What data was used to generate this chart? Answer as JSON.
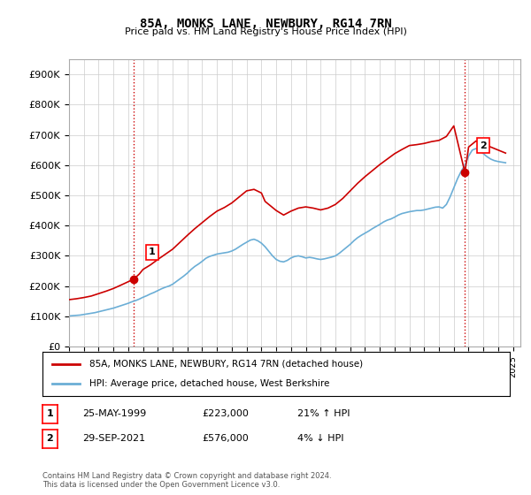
{
  "title": "85A, MONKS LANE, NEWBURY, RG14 7RN",
  "subtitle": "Price paid vs. HM Land Registry's House Price Index (HPI)",
  "ylabel_format": "£{0}K",
  "yticks": [
    0,
    100000,
    200000,
    300000,
    400000,
    500000,
    600000,
    700000,
    800000,
    900000
  ],
  "ytick_labels": [
    "£0",
    "£100K",
    "£200K",
    "£300K",
    "£400K",
    "£500K",
    "£600K",
    "£700K",
    "£800K",
    "£900K"
  ],
  "ylim": [
    0,
    950000
  ],
  "xlim_start": 1995.0,
  "xlim_end": 2025.5,
  "hpi_color": "#6baed6",
  "price_color": "#cc0000",
  "vline_color": "#cc0000",
  "vline_style": "dotted",
  "point1_x": 1999.38,
  "point1_y": 223000,
  "point2_x": 2021.75,
  "point2_y": 576000,
  "legend_label_price": "85A, MONKS LANE, NEWBURY, RG14 7RN (detached house)",
  "legend_label_hpi": "HPI: Average price, detached house, West Berkshire",
  "annotation1_label": "1",
  "annotation2_label": "2",
  "table_row1": [
    "1",
    "25-MAY-1999",
    "£223,000",
    "21% ↑ HPI"
  ],
  "table_row2": [
    "2",
    "29-SEP-2021",
    "£576,000",
    "4% ↓ HPI"
  ],
  "footer": "Contains HM Land Registry data © Crown copyright and database right 2024.\nThis data is licensed under the Open Government Licence v3.0.",
  "background_color": "#ffffff",
  "grid_color": "#cccccc",
  "hpi_data_x": [
    1995.0,
    1995.25,
    1995.5,
    1995.75,
    1996.0,
    1996.25,
    1996.5,
    1996.75,
    1997.0,
    1997.25,
    1997.5,
    1997.75,
    1998.0,
    1998.25,
    1998.5,
    1998.75,
    1999.0,
    1999.25,
    1999.5,
    1999.75,
    2000.0,
    2000.25,
    2000.5,
    2000.75,
    2001.0,
    2001.25,
    2001.5,
    2001.75,
    2002.0,
    2002.25,
    2002.5,
    2002.75,
    2003.0,
    2003.25,
    2003.5,
    2003.75,
    2004.0,
    2004.25,
    2004.5,
    2004.75,
    2005.0,
    2005.25,
    2005.5,
    2005.75,
    2006.0,
    2006.25,
    2006.5,
    2006.75,
    2007.0,
    2007.25,
    2007.5,
    2007.75,
    2008.0,
    2008.25,
    2008.5,
    2008.75,
    2009.0,
    2009.25,
    2009.5,
    2009.75,
    2010.0,
    2010.25,
    2010.5,
    2010.75,
    2011.0,
    2011.25,
    2011.5,
    2011.75,
    2012.0,
    2012.25,
    2012.5,
    2012.75,
    2013.0,
    2013.25,
    2013.5,
    2013.75,
    2014.0,
    2014.25,
    2014.5,
    2014.75,
    2015.0,
    2015.25,
    2015.5,
    2015.75,
    2016.0,
    2016.25,
    2016.5,
    2016.75,
    2017.0,
    2017.25,
    2017.5,
    2017.75,
    2018.0,
    2018.25,
    2018.5,
    2018.75,
    2019.0,
    2019.25,
    2019.5,
    2019.75,
    2020.0,
    2020.25,
    2020.5,
    2020.75,
    2021.0,
    2021.25,
    2021.5,
    2021.75,
    2022.0,
    2022.25,
    2022.5,
    2022.75,
    2023.0,
    2023.25,
    2023.5,
    2023.75,
    2024.0,
    2024.25,
    2024.5
  ],
  "hpi_data_y": [
    101000,
    102000,
    103000,
    104000,
    106000,
    108000,
    110000,
    112000,
    115000,
    118000,
    121000,
    124000,
    127000,
    131000,
    135000,
    139000,
    143000,
    148000,
    152000,
    157000,
    163000,
    168000,
    174000,
    179000,
    185000,
    191000,
    196000,
    200000,
    206000,
    215000,
    224000,
    233000,
    243000,
    255000,
    265000,
    273000,
    282000,
    292000,
    298000,
    302000,
    306000,
    308000,
    310000,
    312000,
    316000,
    322000,
    330000,
    338000,
    345000,
    352000,
    355000,
    350000,
    342000,
    330000,
    315000,
    300000,
    288000,
    282000,
    280000,
    285000,
    293000,
    298000,
    300000,
    297000,
    293000,
    295000,
    293000,
    290000,
    288000,
    290000,
    293000,
    296000,
    300000,
    308000,
    318000,
    328000,
    338000,
    350000,
    360000,
    368000,
    375000,
    382000,
    390000,
    397000,
    404000,
    412000,
    418000,
    422000,
    428000,
    435000,
    440000,
    443000,
    446000,
    448000,
    450000,
    450000,
    452000,
    455000,
    458000,
    461000,
    462000,
    458000,
    470000,
    495000,
    525000,
    555000,
    580000,
    600000,
    630000,
    650000,
    655000,
    648000,
    638000,
    628000,
    620000,
    615000,
    612000,
    610000,
    608000
  ],
  "price_data_x": [
    1995.0,
    1995.5,
    1996.0,
    1996.5,
    1997.0,
    1997.5,
    1998.0,
    1998.5,
    1999.38,
    1999.75,
    2000.0,
    2000.5,
    2001.0,
    2001.5,
    2002.0,
    2002.5,
    2003.0,
    2003.5,
    2004.0,
    2004.5,
    2005.0,
    2005.5,
    2006.0,
    2006.5,
    2007.0,
    2007.5,
    2008.0,
    2008.25,
    2009.0,
    2009.5,
    2010.0,
    2010.5,
    2011.0,
    2011.5,
    2012.0,
    2012.5,
    2013.0,
    2013.5,
    2014.0,
    2014.5,
    2015.0,
    2015.5,
    2016.0,
    2016.5,
    2017.0,
    2017.5,
    2018.0,
    2018.5,
    2019.0,
    2019.5,
    2020.0,
    2020.5,
    2021.0,
    2021.75,
    2022.0,
    2022.5,
    2023.0,
    2023.5,
    2024.0,
    2024.5
  ],
  "price_data_y": [
    155000,
    158000,
    162000,
    167000,
    175000,
    183000,
    192000,
    203000,
    223000,
    240000,
    255000,
    270000,
    288000,
    305000,
    322000,
    345000,
    368000,
    390000,
    410000,
    430000,
    448000,
    460000,
    475000,
    495000,
    515000,
    520000,
    508000,
    480000,
    450000,
    435000,
    448000,
    458000,
    462000,
    458000,
    452000,
    458000,
    470000,
    490000,
    515000,
    540000,
    562000,
    582000,
    602000,
    620000,
    638000,
    652000,
    665000,
    668000,
    672000,
    678000,
    682000,
    695000,
    730000,
    576000,
    660000,
    680000,
    670000,
    660000,
    650000,
    640000
  ]
}
